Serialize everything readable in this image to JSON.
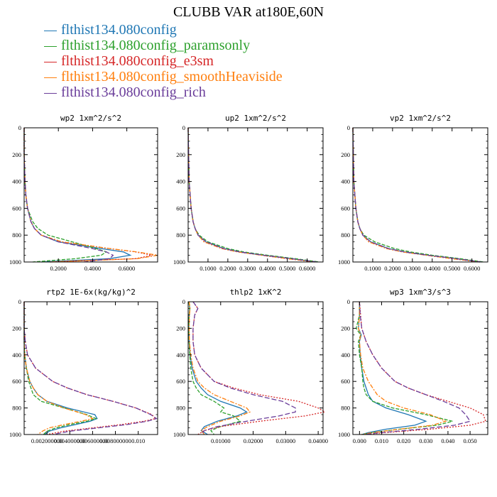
{
  "title": "CLUBB VAR at180E,60N",
  "legend": [
    {
      "label": "flthist134.080config",
      "color": "#1f77b4"
    },
    {
      "label": "flthist134.080config_paramsonly",
      "color": "#2ca02c"
    },
    {
      "label": "flthist134.080config_e3sm",
      "color": "#d62728"
    },
    {
      "label": "flthist134.080config_smoothHeaviside",
      "color": "#ff7f0e"
    },
    {
      "label": "flthist134.080config_rich",
      "color": "#6a3d9a"
    }
  ],
  "chart_data": [
    {
      "type": "line",
      "title": "wp2  1xm^2/s^2",
      "xlim": [
        0,
        0.78
      ],
      "ylim": [
        1000,
        0
      ],
      "yticks": [
        "0",
        "200",
        "400",
        "600",
        "800",
        "1000"
      ],
      "xticks": [
        "0.2000",
        "0.4000",
        "0.6000"
      ],
      "x_tick_values": [
        0.2,
        0.4,
        0.6
      ],
      "y": [
        0,
        200,
        400,
        500,
        600,
        700,
        750,
        800,
        850,
        900,
        925,
        950,
        975,
        1000
      ],
      "series": [
        {
          "color": "#1f77b4",
          "x": [
            0.0,
            0.0,
            0.005,
            0.01,
            0.02,
            0.04,
            0.06,
            0.1,
            0.2,
            0.45,
            0.58,
            0.62,
            0.5,
            0.1
          ]
        },
        {
          "color": "#2ca02c",
          "x": [
            0.0,
            0.0,
            0.005,
            0.01,
            0.02,
            0.05,
            0.08,
            0.14,
            0.28,
            0.42,
            0.48,
            0.45,
            0.3,
            0.05
          ]
        },
        {
          "color": "#d62728",
          "x": [
            0.0,
            0.0,
            0.005,
            0.01,
            0.02,
            0.04,
            0.06,
            0.1,
            0.22,
            0.5,
            0.65,
            0.75,
            0.65,
            0.15
          ]
        },
        {
          "color": "#ff7f0e",
          "x": [
            0.0,
            0.0,
            0.005,
            0.01,
            0.02,
            0.04,
            0.06,
            0.1,
            0.22,
            0.5,
            0.66,
            0.78,
            0.66,
            0.15
          ]
        },
        {
          "color": "#6a3d9a",
          "x": [
            0.0,
            0.0,
            0.005,
            0.01,
            0.02,
            0.04,
            0.06,
            0.1,
            0.2,
            0.4,
            0.48,
            0.52,
            0.5,
            0.35
          ]
        }
      ]
    },
    {
      "type": "line",
      "title": "up2  1xm^2/s^2",
      "xlim": [
        0,
        0.68
      ],
      "ylim": [
        1000,
        0
      ],
      "yticks": [
        "0",
        "200",
        "400",
        "600",
        "800",
        "1000"
      ],
      "xticks": [
        "0.1000",
        "0.2000",
        "0.3000",
        "0.4000",
        "0.5000",
        "0.6000"
      ],
      "x_tick_values": [
        0.1,
        0.2,
        0.3,
        0.4,
        0.5,
        0.6
      ],
      "y": [
        0,
        200,
        400,
        500,
        600,
        700,
        750,
        800,
        850,
        900,
        925,
        950,
        975,
        1000
      ],
      "series": [
        {
          "color": "#1f77b4",
          "x": [
            0.0,
            0.002,
            0.005,
            0.01,
            0.015,
            0.025,
            0.035,
            0.05,
            0.09,
            0.18,
            0.26,
            0.38,
            0.52,
            0.65
          ]
        },
        {
          "color": "#2ca02c",
          "x": [
            0.0,
            0.002,
            0.005,
            0.01,
            0.015,
            0.025,
            0.035,
            0.055,
            0.1,
            0.2,
            0.28,
            0.4,
            0.54,
            0.66
          ]
        },
        {
          "color": "#d62728",
          "x": [
            0.0,
            0.002,
            0.005,
            0.01,
            0.015,
            0.025,
            0.035,
            0.05,
            0.08,
            0.17,
            0.25,
            0.37,
            0.5,
            0.64
          ]
        },
        {
          "color": "#ff7f0e",
          "x": [
            0.0,
            0.002,
            0.005,
            0.01,
            0.015,
            0.025,
            0.035,
            0.05,
            0.08,
            0.17,
            0.25,
            0.37,
            0.5,
            0.64
          ]
        },
        {
          "color": "#6a3d9a",
          "x": [
            0.0,
            0.002,
            0.005,
            0.01,
            0.015,
            0.025,
            0.035,
            0.05,
            0.09,
            0.18,
            0.26,
            0.38,
            0.52,
            0.65
          ]
        }
      ]
    },
    {
      "type": "line",
      "title": "vp2  1xm^2/s^2",
      "xlim": [
        0,
        0.68
      ],
      "ylim": [
        1000,
        0
      ],
      "yticks": [
        "0",
        "200",
        "400",
        "600",
        "800",
        "1000"
      ],
      "xticks": [
        "0.1000",
        "0.2000",
        "0.3000",
        "0.4000",
        "0.5000",
        "0.6000"
      ],
      "x_tick_values": [
        0.1,
        0.2,
        0.3,
        0.4,
        0.5,
        0.6
      ],
      "y": [
        0,
        200,
        400,
        500,
        600,
        700,
        750,
        800,
        850,
        900,
        925,
        950,
        975,
        1000
      ],
      "series": [
        {
          "color": "#1f77b4",
          "x": [
            0.0,
            0.002,
            0.005,
            0.01,
            0.015,
            0.025,
            0.035,
            0.05,
            0.09,
            0.18,
            0.26,
            0.38,
            0.52,
            0.64
          ]
        },
        {
          "color": "#2ca02c",
          "x": [
            0.0,
            0.002,
            0.005,
            0.01,
            0.015,
            0.025,
            0.035,
            0.055,
            0.11,
            0.21,
            0.29,
            0.4,
            0.54,
            0.66
          ]
        },
        {
          "color": "#d62728",
          "x": [
            0.0,
            0.002,
            0.005,
            0.01,
            0.015,
            0.025,
            0.035,
            0.05,
            0.08,
            0.17,
            0.25,
            0.37,
            0.5,
            0.64
          ]
        },
        {
          "color": "#ff7f0e",
          "x": [
            0.0,
            0.002,
            0.005,
            0.01,
            0.015,
            0.025,
            0.035,
            0.05,
            0.08,
            0.17,
            0.25,
            0.37,
            0.5,
            0.64
          ]
        },
        {
          "color": "#6a3d9a",
          "x": [
            0.0,
            0.002,
            0.005,
            0.01,
            0.015,
            0.025,
            0.035,
            0.05,
            0.09,
            0.18,
            0.26,
            0.38,
            0.52,
            0.65
          ]
        }
      ]
    },
    {
      "type": "line",
      "title": "rtp2  1E-6x(kg/kg)^2",
      "xlim": [
        0,
        0.0117
      ],
      "ylim": [
        1000,
        0
      ],
      "yticks": [
        "0",
        "200",
        "400",
        "600",
        "800",
        "1000"
      ],
      "xticks": [
        "0.002000000",
        "0.004000000",
        "0.006000000",
        "0.008000000",
        "0.010"
      ],
      "x_tick_values": [
        0.002,
        0.004,
        0.006,
        0.008,
        0.01
      ],
      "y": [
        0,
        200,
        300,
        400,
        500,
        600,
        650,
        700,
        750,
        800,
        850,
        880,
        900,
        925,
        950,
        975,
        1000
      ],
      "series": [
        {
          "color": "#1f77b4",
          "x": [
            0.0,
            0.0,
            0.0,
            5e-05,
            0.0002,
            0.0005,
            0.0008,
            0.0012,
            0.002,
            0.0038,
            0.0062,
            0.0064,
            0.0058,
            0.0045,
            0.0032,
            0.0022,
            0.0018
          ]
        },
        {
          "color": "#2ca02c",
          "x": [
            0.0,
            0.0,
            0.0,
            5e-05,
            0.0002,
            0.0004,
            0.0006,
            0.0008,
            0.0015,
            0.0035,
            0.0055,
            0.0063,
            0.0055,
            0.004,
            0.0028,
            0.002,
            0.0017
          ]
        },
        {
          "color": "#d62728",
          "x": [
            0.0,
            0.0,
            0.0001,
            0.0003,
            0.001,
            0.0025,
            0.0038,
            0.0055,
            0.0078,
            0.0098,
            0.0112,
            0.0115,
            0.0105,
            0.0085,
            0.006,
            0.0035,
            0.002
          ]
        },
        {
          "color": "#ff7f0e",
          "x": [
            0.0,
            0.0,
            0.0,
            5e-05,
            0.0002,
            0.0005,
            0.0008,
            0.0012,
            0.002,
            0.0035,
            0.0054,
            0.006,
            0.005,
            0.0035,
            0.0022,
            0.0016,
            0.0012
          ]
        },
        {
          "color": "#6a3d9a",
          "x": [
            0.0,
            0.0,
            0.0001,
            0.0003,
            0.001,
            0.0025,
            0.0038,
            0.0055,
            0.0078,
            0.0098,
            0.0111,
            0.0116,
            0.0108,
            0.009,
            0.0065,
            0.004,
            0.0025
          ]
        }
      ]
    },
    {
      "type": "line",
      "title": "thlp2  1xK^2",
      "xlim": [
        0,
        0.0415
      ],
      "ylim": [
        1000,
        0
      ],
      "yticks": [
        "0",
        "200",
        "400",
        "600",
        "800",
        "1000"
      ],
      "xticks": [
        "0.01000",
        "0.02000",
        "0.03000",
        "0.04000"
      ],
      "x_tick_values": [
        0.01,
        0.02,
        0.03,
        0.04
      ],
      "y": [
        0,
        50,
        100,
        200,
        300,
        400,
        500,
        600,
        650,
        700,
        750,
        800,
        830,
        860,
        900,
        940,
        970,
        1000
      ],
      "series": [
        {
          "color": "#1f77b4",
          "x": [
            0.0002,
            0.0005,
            0.0003,
            0.0002,
            0.0003,
            0.0006,
            0.0012,
            0.0025,
            0.004,
            0.006,
            0.01,
            0.016,
            0.018,
            0.015,
            0.009,
            0.005,
            0.004,
            0.006
          ]
        },
        {
          "color": "#2ca02c",
          "x": [
            0.0002,
            0.0005,
            0.0003,
            0.0002,
            0.0003,
            0.0005,
            0.0008,
            0.0015,
            0.0025,
            0.004,
            0.008,
            0.011,
            0.01,
            0.014,
            0.016,
            0.01,
            0.007,
            0.008
          ]
        },
        {
          "color": "#d62728",
          "x": [
            0.0015,
            0.003,
            0.002,
            0.0015,
            0.0015,
            0.002,
            0.004,
            0.008,
            0.014,
            0.022,
            0.034,
            0.04,
            0.042,
            0.036,
            0.022,
            0.01,
            0.005,
            0.003
          ]
        },
        {
          "color": "#ff7f0e",
          "x": [
            0.0003,
            0.0006,
            0.0004,
            0.0003,
            0.0004,
            0.0008,
            0.0015,
            0.003,
            0.005,
            0.008,
            0.013,
            0.018,
            0.019,
            0.016,
            0.01,
            0.006,
            0.004,
            0.005
          ]
        },
        {
          "color": "#6a3d9a",
          "x": [
            0.0015,
            0.003,
            0.002,
            0.0015,
            0.0015,
            0.002,
            0.004,
            0.008,
            0.013,
            0.02,
            0.029,
            0.033,
            0.033,
            0.028,
            0.018,
            0.009,
            0.005,
            0.004
          ]
        }
      ]
    },
    {
      "type": "line",
      "title": "wp3  1xm^3/s^3",
      "xlim": [
        -0.003,
        0.058
      ],
      "ylim": [
        1000,
        0
      ],
      "yticks": [
        "0",
        "200",
        "400",
        "600",
        "800",
        "1000"
      ],
      "xticks": [
        "0.000",
        "0.010",
        "0.020",
        "0.030",
        "0.040",
        "0.050"
      ],
      "x_tick_values": [
        0.0,
        0.01,
        0.02,
        0.03,
        0.04,
        0.05
      ],
      "y": [
        0,
        100,
        200,
        250,
        300,
        400,
        500,
        600,
        650,
        700,
        750,
        800,
        850,
        900,
        930,
        960,
        985,
        1000
      ],
      "series": [
        {
          "color": "#1f77b4",
          "x": [
            0.0,
            0.0,
            -0.0005,
            0.0008,
            0.0,
            0.0003,
            0.001,
            0.002,
            0.003,
            0.004,
            0.006,
            0.012,
            0.022,
            0.03,
            0.025,
            0.012,
            0.004,
            0.001
          ]
        },
        {
          "color": "#2ca02c",
          "x": [
            0.0,
            0.0,
            -0.0015,
            0.0005,
            -0.0005,
            0.0,
            0.001,
            0.0015,
            0.002,
            0.003,
            0.006,
            0.015,
            0.03,
            0.042,
            0.035,
            0.018,
            0.006,
            0.001
          ]
        },
        {
          "color": "#d62728",
          "x": [
            0.0,
            0.0005,
            0.001,
            0.002,
            0.003,
            0.006,
            0.01,
            0.016,
            0.022,
            0.03,
            0.04,
            0.05,
            0.056,
            0.057,
            0.05,
            0.032,
            0.012,
            0.003
          ]
        },
        {
          "color": "#ff7f0e",
          "x": [
            0.0,
            0.0,
            -0.0005,
            0.0005,
            0.0,
            0.0005,
            0.0015,
            0.004,
            0.006,
            0.008,
            0.012,
            0.02,
            0.032,
            0.039,
            0.033,
            0.018,
            0.006,
            0.001
          ]
        },
        {
          "color": "#6a3d9a",
          "x": [
            0.0,
            0.0003,
            0.001,
            0.002,
            0.003,
            0.006,
            0.01,
            0.016,
            0.022,
            0.03,
            0.038,
            0.045,
            0.048,
            0.05,
            0.043,
            0.027,
            0.01,
            0.002
          ]
        }
      ]
    }
  ]
}
